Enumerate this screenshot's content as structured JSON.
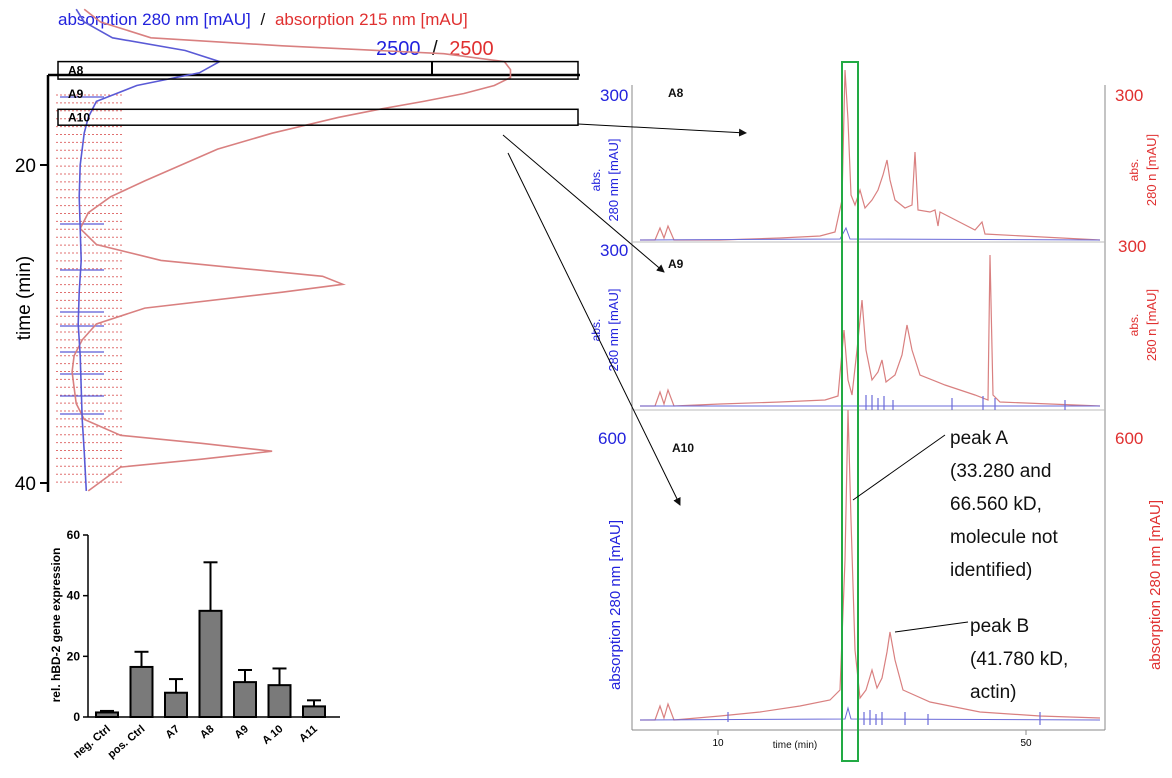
{
  "chart_data": [
    {
      "type": "line",
      "panel": "fractionation",
      "title_280": "absorption 280 nm [mAU]",
      "title_sep": "/",
      "title_215": "absorption 215 nm  [mAU]",
      "scale_280": "2500",
      "scale_sep": "/",
      "scale_215": "2500",
      "ylabel": "time (min)",
      "y_ticks": [
        "20",
        "40"
      ],
      "ylim": [
        10,
        41
      ],
      "xlim": [
        0,
        2500
      ],
      "orientation": "vertical",
      "fractions": [
        {
          "name": "A8",
          "t_start": 13.5,
          "t_end": 14.6
        },
        {
          "name": "A9",
          "t_start": 14.6,
          "t_end": 16.5
        },
        {
          "name": "A10",
          "t_start": 16.5,
          "t_end": 17.5
        }
      ],
      "series": [
        {
          "name": "absorption 280 nm",
          "color": "#5a5ad6",
          "t": [
            10.2,
            11,
            12,
            12.8,
            13.5,
            14.2,
            15,
            16,
            17,
            18,
            19,
            20,
            22,
            24,
            26,
            28,
            30,
            32,
            34,
            36,
            38,
            40.5
          ],
          "values": [
            80,
            120,
            260,
            620,
            790,
            690,
            380,
            180,
            140,
            120,
            110,
            100,
            95,
            100,
            105,
            95,
            90,
            100,
            105,
            110,
            120,
            130
          ]
        },
        {
          "name": "absorption 215 nm",
          "color": "#d98080",
          "t": [
            10.2,
            11,
            12,
            12.5,
            13,
            13.5,
            14,
            14.5,
            15,
            15.5,
            16,
            16.5,
            17,
            18,
            19,
            20,
            21,
            22,
            23,
            24,
            25,
            26,
            26.5,
            27,
            27.5,
            28,
            29,
            30,
            31,
            32,
            33,
            34,
            35,
            36,
            37,
            37.5,
            38,
            38.5,
            39,
            40.5
          ],
          "values": [
            120,
            200,
            450,
            1100,
            1900,
            2200,
            2230,
            2230,
            2150,
            2000,
            1800,
            1580,
            1380,
            1050,
            780,
            600,
            420,
            250,
            140,
            100,
            180,
            500,
            900,
            1300,
            1400,
            1100,
            420,
            180,
            110,
            70,
            60,
            70,
            80,
            120,
            300,
            700,
            1050,
            700,
            300,
            140
          ]
        }
      ]
    },
    {
      "type": "bar",
      "panel": "gene-expression",
      "ylabel": "rel. hBD-2 gene expression",
      "categories": [
        "neg. Ctrl",
        "pos. Ctrl",
        "A7",
        "A8",
        "A9",
        "A 10",
        "A11"
      ],
      "values": [
        1.5,
        16.5,
        8,
        35,
        11.5,
        10.5,
        3.5
      ],
      "errors": [
        0.5,
        5,
        4.5,
        16,
        4,
        5.5,
        2
      ],
      "y_ticks": [
        0,
        20,
        40,
        60
      ],
      "ylim": [
        0,
        60
      ],
      "bar_color": "#7a7a7a"
    },
    {
      "type": "line",
      "panel": "chromatogram-A8",
      "label": "A8",
      "y_left_label_1": "abs.",
      "y_left_label_2": "280 nm [mAU]",
      "y_right_label_1": "abs.",
      "y_right_label_2": "280 n [mAU]",
      "y_left_tick": "300",
      "y_right_tick": "300",
      "ylim": [
        0,
        300
      ],
      "xlim": [
        0,
        62
      ]
    },
    {
      "type": "line",
      "panel": "chromatogram-A9",
      "label": "A9",
      "y_left_label_1": "abs.",
      "y_left_label_2": "280 nm [mAU]",
      "y_right_label_1": "abs.",
      "y_right_label_2": "280 n [mAU]",
      "y_left_tick": "300",
      "y_right_tick": "300",
      "ylim": [
        0,
        300
      ],
      "xlim": [
        0,
        62
      ]
    },
    {
      "type": "line",
      "panel": "chromatogram-A10",
      "label": "A10",
      "y_left_label": "absorption 280 nm [mAU]",
      "y_right_label": "absorption 280 nm [mAU]",
      "y_left_tick": "600",
      "y_right_tick": "600",
      "xlabel": "time (min)",
      "x_ticks": [
        {
          "v": 10,
          "label": "10"
        },
        {
          "v": 50,
          "label": "50"
        }
      ],
      "ylim": [
        0,
        600
      ],
      "xlim": [
        0,
        62
      ],
      "annotations": [
        {
          "lines": [
            "peak A",
            "(33.280 and",
            "66.560 kD,",
            "molecule not",
            "identified)"
          ]
        },
        {
          "lines": [
            "peak B",
            "(41.780 kD,",
            "actin)"
          ]
        }
      ]
    }
  ]
}
